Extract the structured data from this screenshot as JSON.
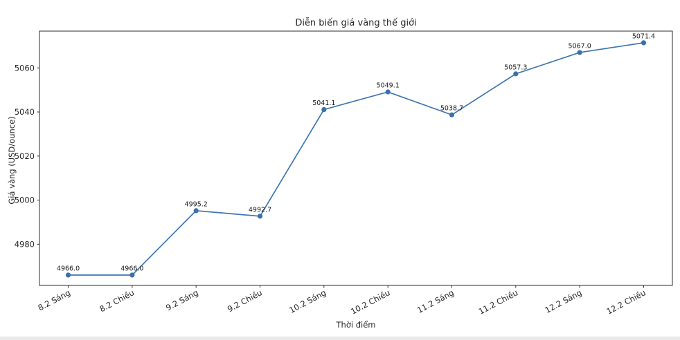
{
  "chart_data": {
    "type": "line",
    "title": "Diễn biến giá vàng thế giới",
    "xlabel": "Thời điểm",
    "ylabel": "Giá vàng (USD/ounce)",
    "categories": [
      "8.2 Sáng",
      "8.2 Chiều",
      "9.2 Sáng",
      "9.2 Chiều",
      "10.2 Sáng",
      "10.2 Chiều",
      "11.2 Sáng",
      "11.2 Chiều",
      "12.2 Sáng",
      "12.2 Chiều"
    ],
    "values": [
      4966.0,
      4966.0,
      4995.2,
      4992.7,
      5041.1,
      5049.1,
      5038.7,
      5057.3,
      5067.0,
      5071.4
    ],
    "point_labels": [
      "4966.0",
      "4966.0",
      "4995.2",
      "4992.7",
      "5041.1",
      "5049.1",
      "5038.7",
      "5057.3",
      "5067.0",
      "5071.4"
    ],
    "yticks": [
      4980,
      5000,
      5020,
      5040,
      5060
    ],
    "ylim": [
      4961.3,
      5076.7
    ],
    "grid": false,
    "legend_position": "none",
    "line_color": "#3f76b0",
    "marker_color": "#3a70ad",
    "x_tick_rotation_deg": -28
  }
}
